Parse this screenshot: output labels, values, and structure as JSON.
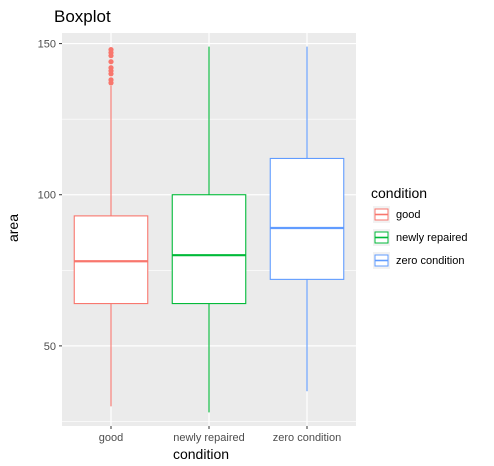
{
  "chart_data": {
    "type": "boxplot",
    "title": "Boxplot",
    "xlabel": "condition",
    "ylabel": "area",
    "categories": [
      "good",
      "newly repaired",
      "zero condition"
    ],
    "ylim": [
      23.5,
      153.5
    ],
    "yticks": [
      50,
      100,
      150
    ],
    "grid": true,
    "legend": {
      "title": "condition",
      "position": "right",
      "entries": [
        "good",
        "newly repaired",
        "zero condition"
      ]
    },
    "series": [
      {
        "name": "good",
        "color": "#F8766D",
        "whisker_low": 30,
        "q1": 64,
        "median": 78,
        "q3": 93,
        "whisker_high": 136,
        "outliers": [
          137,
          138,
          140,
          141,
          142,
          144,
          146,
          147,
          148
        ]
      },
      {
        "name": "newly repaired",
        "color": "#00BA38",
        "whisker_low": 28,
        "q1": 64,
        "median": 80,
        "q3": 100,
        "whisker_high": 149,
        "outliers": []
      },
      {
        "name": "zero condition",
        "color": "#619CFF",
        "whisker_low": 35,
        "q1": 72,
        "median": 89,
        "q3": 112,
        "whisker_high": 149,
        "outliers": []
      }
    ]
  }
}
